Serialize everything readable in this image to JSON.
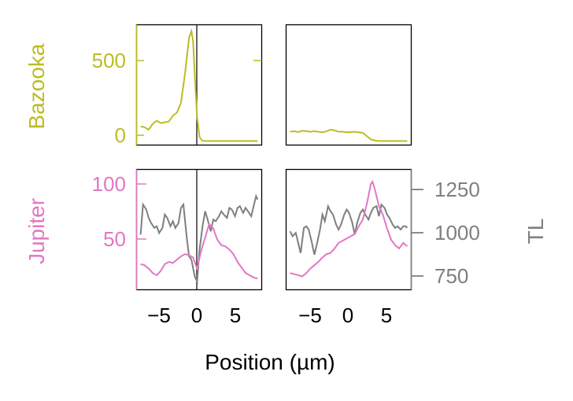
{
  "colors": {
    "bazooka": "#bcbd22",
    "jupiter": "#e377c2",
    "tl": "#7f7f7f",
    "axis": "#000000"
  },
  "labels": {
    "xlabel": "Position (µm)",
    "bazooka": "Bazooka",
    "jupiter": "Jupiter",
    "tl": "TL"
  },
  "chart_data": [
    {
      "type": "line",
      "panel": "top-left",
      "ylabel": "Bazooka",
      "xlim": [
        -7.5,
        8
      ],
      "ylim": [
        -20,
        720
      ],
      "yticks": [
        0,
        500
      ],
      "series": [
        {
          "name": "Bazooka",
          "color": "#bcbd22",
          "x": [
            -7,
            -6.5,
            -6,
            -5.5,
            -5,
            -4.5,
            -4,
            -3.5,
            -3,
            -2.5,
            -2,
            -1.5,
            -1,
            -0.7,
            -0.5,
            -0.3,
            0,
            0.3,
            0.6,
            1,
            2,
            3,
            4,
            5,
            6,
            7,
            7.5
          ],
          "y": [
            95,
            90,
            75,
            110,
            130,
            115,
            120,
            125,
            160,
            180,
            240,
            420,
            640,
            680,
            620,
            420,
            150,
            30,
            8,
            5,
            5,
            5,
            5,
            5,
            5,
            5,
            5
          ]
        }
      ]
    },
    {
      "type": "line",
      "panel": "top-right",
      "xlim": [
        -7.5,
        8
      ],
      "ylim": [
        -20,
        720
      ],
      "series": [
        {
          "name": "Bazooka",
          "color": "#bcbd22",
          "x": [
            -7,
            -6.5,
            -6,
            -5.5,
            -5,
            -4.5,
            -4,
            -3.5,
            -3,
            -2.5,
            -2,
            -1.5,
            -1,
            -0.5,
            0,
            0.5,
            1,
            1.5,
            2,
            2.5,
            3,
            3.5,
            4,
            5,
            6,
            7,
            7.5
          ],
          "y": [
            62,
            65,
            60,
            68,
            66,
            62,
            66,
            62,
            58,
            65,
            75,
            70,
            62,
            62,
            58,
            60,
            62,
            58,
            55,
            35,
            15,
            8,
            5,
            5,
            5,
            5,
            5
          ]
        }
      ]
    },
    {
      "type": "line",
      "panel": "bottom-left",
      "ylabel": "Jupiter",
      "xlim": [
        -7.5,
        8
      ],
      "ylim": [
        5,
        113
      ],
      "yticks": [
        50,
        100
      ],
      "series": [
        {
          "name": "Jupiter",
          "color": "#e377c2",
          "x": [
            -7,
            -6.5,
            -6,
            -5.5,
            -5,
            -4.5,
            -4,
            -3.5,
            -3,
            -2.5,
            -2,
            -1.5,
            -1,
            -0.5,
            0,
            0.5,
            1,
            1.5,
            2,
            2.5,
            3,
            3.5,
            4,
            4.5,
            5,
            5.5,
            6,
            6.5,
            7,
            7.5
          ],
          "y": [
            28,
            27,
            24,
            20,
            18,
            22,
            28,
            30,
            29,
            32,
            35,
            37,
            36,
            34,
            24,
            40,
            52,
            64,
            60,
            50,
            45,
            44,
            41,
            37,
            30,
            25,
            20,
            18,
            16,
            15
          ]
        },
        {
          "name": "TL",
          "color": "#7f7f7f",
          "axis": "right",
          "x": [
            -7,
            -6.7,
            -6.3,
            -6,
            -5.7,
            -5.3,
            -5,
            -4.7,
            -4.3,
            -4,
            -3.7,
            -3.3,
            -3,
            -2.7,
            -2.3,
            -2,
            -1.7,
            -1.3,
            -1,
            -0.7,
            -0.3,
            0,
            0.3,
            0.7,
            1,
            1.3,
            1.7,
            2,
            2.3,
            2.7,
            3,
            3.3,
            3.7,
            4,
            4.3,
            4.7,
            5,
            5.3,
            5.7,
            6,
            6.3,
            6.7,
            7,
            7.3,
            7.5
          ],
          "y": [
            1010,
            1190,
            1160,
            1110,
            1080,
            1050,
            1060,
            1020,
            1050,
            1130,
            1110,
            1060,
            1090,
            1050,
            1080,
            1170,
            1190,
            1000,
            880,
            860,
            760,
            730,
            920,
            1070,
            1150,
            1100,
            1030,
            1100,
            1090,
            1120,
            1150,
            1130,
            1110,
            1170,
            1160,
            1120,
            1170,
            1180,
            1140,
            1170,
            1150,
            1120,
            1180,
            1240,
            1220
          ]
        }
      ]
    },
    {
      "type": "line",
      "panel": "bottom-right",
      "ylabel": "TL",
      "xlim": [
        -7.5,
        8
      ],
      "ylim": [
        680,
        1400
      ],
      "yticks": [
        750,
        1000,
        1250
      ],
      "series": [
        {
          "name": "Jupiter",
          "color": "#e377c2",
          "axis": "left",
          "x": [
            -7,
            -6.5,
            -6,
            -5.5,
            -5,
            -4.5,
            -4,
            -3.5,
            -3,
            -2.5,
            -2,
            -1.5,
            -1,
            -0.5,
            0,
            0.5,
            1,
            1.5,
            2,
            2.5,
            3,
            3.2,
            3.5,
            4,
            4.5,
            5,
            5.5,
            6,
            6.5,
            7,
            7.5
          ],
          "y": [
            20,
            19,
            18,
            17,
            20,
            24,
            27,
            30,
            34,
            37,
            38,
            42,
            47,
            49,
            51,
            53,
            55,
            62,
            68,
            82,
            100,
            102,
            95,
            80,
            72,
            60,
            50,
            45,
            42,
            47,
            44
          ]
        },
        {
          "name": "TL",
          "color": "#7f7f7f",
          "x": [
            -7,
            -6.7,
            -6.3,
            -6,
            -5.7,
            -5.3,
            -5,
            -4.7,
            -4.3,
            -4,
            -3.7,
            -3.3,
            -3,
            -2.7,
            -2.3,
            -2,
            -1.7,
            -1.3,
            -1,
            -0.7,
            -0.3,
            0,
            0.3,
            0.7,
            1,
            1.3,
            1.7,
            2,
            2.3,
            2.7,
            3,
            3.3,
            3.7,
            4,
            4.3,
            4.7,
            5,
            5.3,
            5.7,
            6,
            6.3,
            6.7,
            7,
            7.3,
            7.5
          ],
          "y": [
            1030,
            1000,
            1020,
            960,
            900,
            1050,
            1060,
            1040,
            960,
            890,
            950,
            1040,
            1130,
            1090,
            1180,
            1150,
            1130,
            1070,
            1040,
            1070,
            1130,
            1160,
            1140,
            1080,
            1010,
            1080,
            1140,
            1160,
            1130,
            1100,
            1140,
            1170,
            1180,
            1120,
            1190,
            1170,
            1130,
            1110,
            1070,
            1050,
            1060,
            1040,
            1060,
            1060,
            1050
          ]
        }
      ]
    }
  ]
}
